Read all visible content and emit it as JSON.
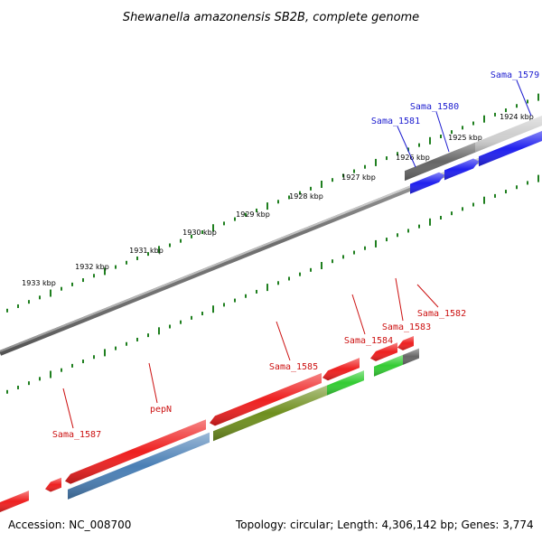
{
  "title": "Shewanella amazonensis SB2B, complete genome",
  "footer": {
    "accession": "Accession: NC_008700",
    "summary": "Topology: circular; Length: 4,306,142 bp; Genes: 3,774"
  },
  "ruler": {
    "ticks": [
      "1924 kbp",
      "1925 kbp",
      "1926 kbp",
      "1927 kbp",
      "1928 kbp",
      "1929 kbp",
      "1930 kbp",
      "1931 kbp",
      "1932 kbp",
      "1933 kbp"
    ]
  },
  "genes_forward": [
    {
      "label": "Sama_1579",
      "color": "#1c1ccf"
    },
    {
      "label": "Sama_1580",
      "color": "#1c1ccf"
    },
    {
      "label": "Sama_1581",
      "color": "#1c1ccf"
    }
  ],
  "genes_reverse": [
    {
      "label": "Sama_1582",
      "color": "#cc1111"
    },
    {
      "label": "Sama_1583",
      "color": "#cc1111"
    },
    {
      "label": "Sama_1584",
      "color": "#cc1111"
    },
    {
      "label": "Sama_1585",
      "color": "#cc1111"
    },
    {
      "label": "pepN",
      "color": "#cc1111"
    },
    {
      "label": "Sama_1587",
      "color": "#cc1111"
    }
  ],
  "colors": {
    "tick": "#1f7f1f",
    "backbone": "#8a8a8a",
    "forward_label": "#1c1ccf",
    "reverse_label": "#cc1111",
    "cds_red": "#ee2020",
    "cds_blue": "#2020ee",
    "cds_green": "#33cc33",
    "cds_olive": "#6f8f1f",
    "cds_steel": "#4a7fb5",
    "cds_dark": "#666666",
    "cds_light": "#cfcfcf"
  }
}
